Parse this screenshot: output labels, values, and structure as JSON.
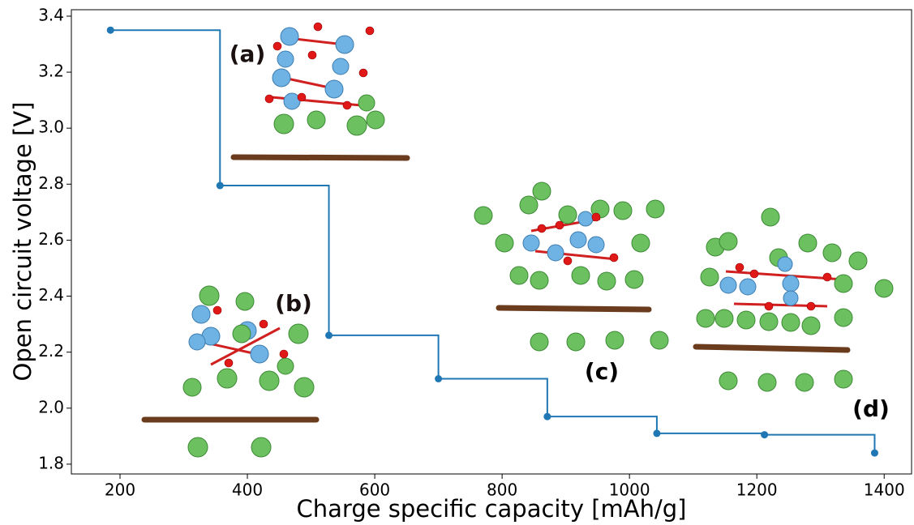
{
  "chart_data": {
    "type": "step",
    "xlabel": "Charge specific capacity [mAh/g]",
    "ylabel": "Open circuit voltage [V]",
    "annotations": [
      "(a)",
      "(b)",
      "(c)",
      "(d)"
    ],
    "x": [
      185,
      357,
      528,
      700,
      871,
      1043,
      1212,
      1385
    ],
    "series": [
      {
        "color": "#1f77b4",
        "values": [
          3.35,
          2.795,
          2.26,
          2.105,
          1.97,
          1.91,
          1.905,
          1.84
        ]
      }
    ],
    "xlim": [
      123.6,
      1443
    ],
    "ylim": [
      1.765,
      3.423
    ],
    "xticks": [
      200,
      400,
      600,
      800,
      1000,
      1200,
      1400
    ],
    "yticks": [
      1.8,
      {
        "value": 2,
        "label": "2.0"
      },
      2.2,
      2.4,
      2.6,
      2.8,
      {
        "value": 3,
        "label": "3.0"
      },
      3.2,
      3.4
    ]
  }
}
